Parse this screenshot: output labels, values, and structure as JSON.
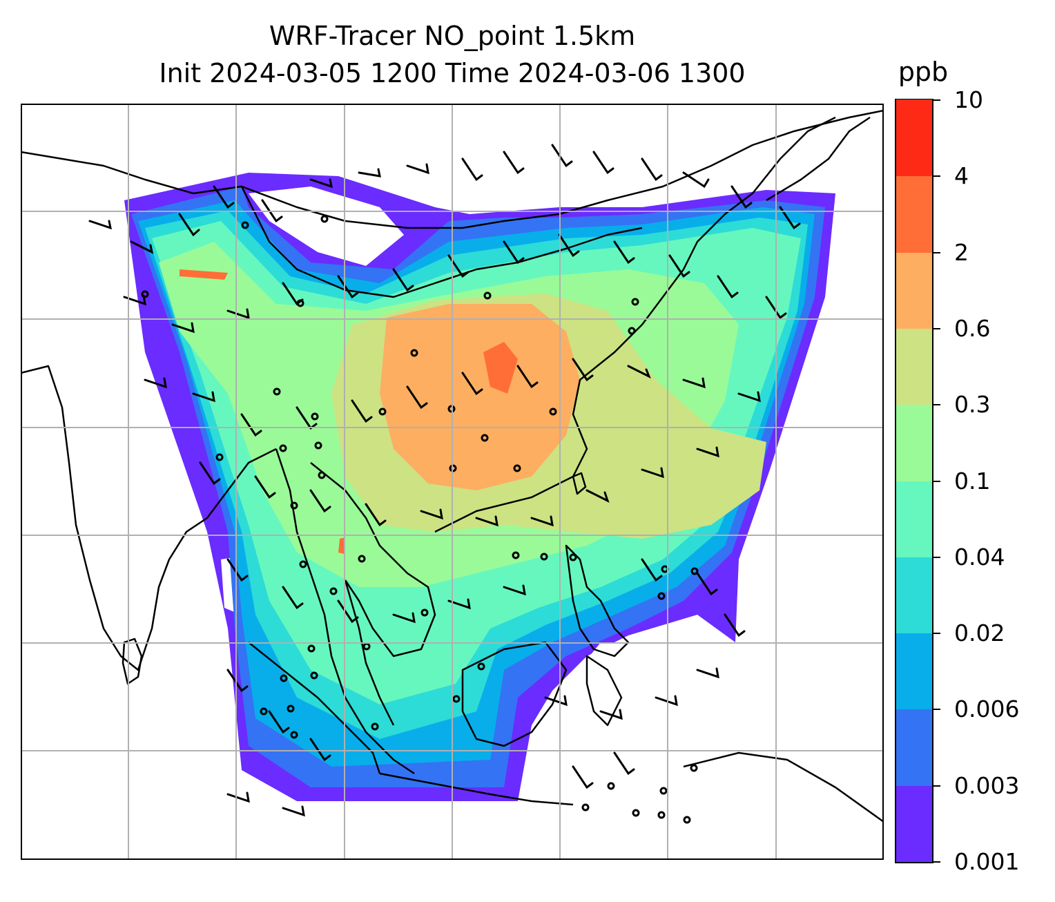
{
  "title": {
    "line1": "WRF-Tracer NO_point 1.5km",
    "line2": "Init 2024-03-05 1200 Time 2024-03-06 1300"
  },
  "map": {
    "field": "NO_point",
    "gridlines": true,
    "features": [
      "coastlines",
      "country-borders",
      "wind-barbs",
      "calm-wind-circles",
      "tracer-concentration-fill"
    ]
  },
  "colorbar": {
    "unit": "ppb",
    "tick_labels": [
      "0.001",
      "0.003",
      "0.006",
      "0.02",
      "0.04",
      "0.1",
      "0.3",
      "0.6",
      "2",
      "4",
      "10"
    ],
    "colors": [
      "#6a2cff",
      "#3473f4",
      "#08aeea",
      "#2ddcd6",
      "#66f7bf",
      "#9afa98",
      "#cde283",
      "#fdae61",
      "#ff6e37",
      "#ff2a16"
    ]
  }
}
